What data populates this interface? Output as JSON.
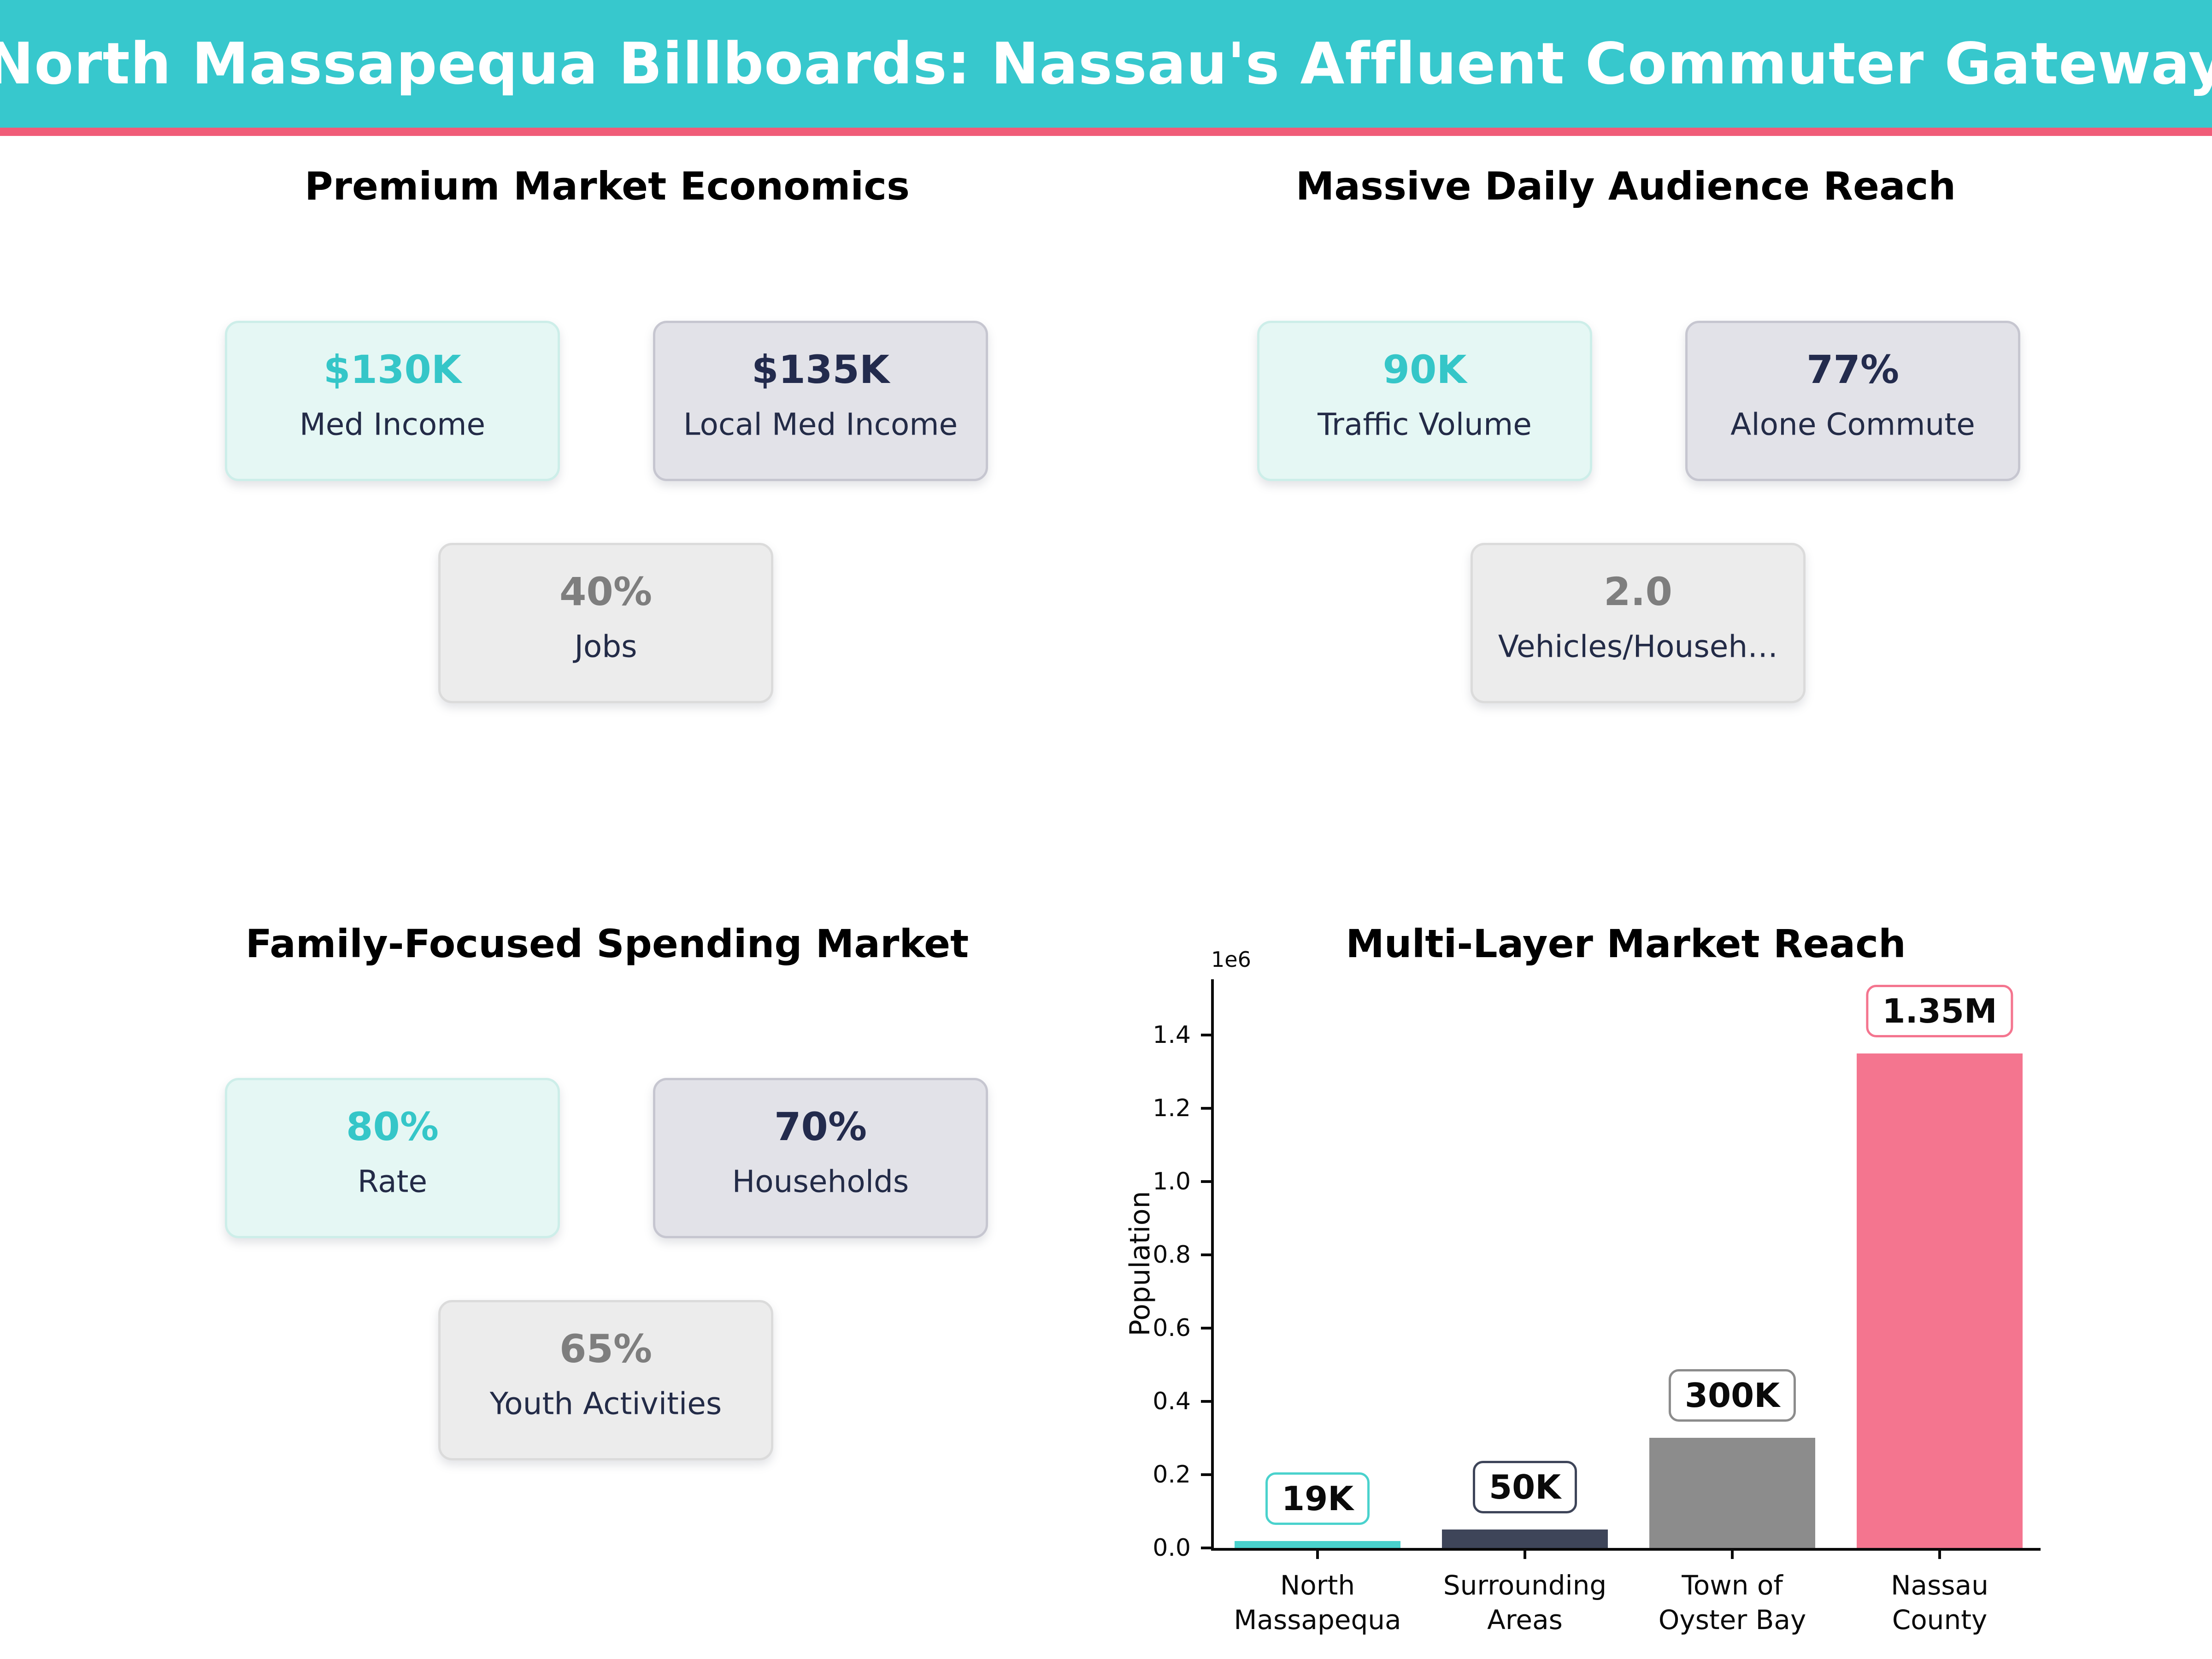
{
  "header": {
    "title": "North Massapequa Billboards: Nassau's Affluent Commuter Gateway"
  },
  "colors": {
    "header_bg": "#37C8CD",
    "divider": "#F05C78",
    "teal_accent": "#35C6C8",
    "navy_text": "#232B47",
    "gray_value": "#7E7E7E"
  },
  "sections": {
    "economics": {
      "title": "Premium Market Economics",
      "cards": [
        {
          "value": "$130K",
          "label": "Med Income"
        },
        {
          "value": "$135K",
          "label": "Local Med Income"
        },
        {
          "value": "40%",
          "label": "Jobs"
        }
      ]
    },
    "audience": {
      "title": "Massive Daily Audience Reach",
      "cards": [
        {
          "value": "90K",
          "label": "Traffic Volume"
        },
        {
          "value": "77%",
          "label": "Alone Commute"
        },
        {
          "value": "2.0",
          "label": "Vehicles/Househ…"
        }
      ]
    },
    "family": {
      "title": "Family-Focused Spending Market",
      "cards": [
        {
          "value": "80%",
          "label": "Rate"
        },
        {
          "value": "70%",
          "label": "Households"
        },
        {
          "value": "65%",
          "label": "Youth Activities"
        }
      ]
    }
  },
  "chart_data": {
    "type": "bar",
    "title": "Multi-Layer Market Reach",
    "categories": [
      "North\nMassapequa",
      "Surrounding\nAreas",
      "Town of\nOyster Bay",
      "Nassau\nCounty"
    ],
    "values": [
      19000,
      50000,
      300000,
      1350000
    ],
    "bar_labels": [
      "19K",
      "50K",
      "300K",
      "1.35M"
    ],
    "bar_colors": [
      "#4AD2CD",
      "#3E4559",
      "#8C8C8C",
      "#F4758F"
    ],
    "xlabel": "",
    "ylabel": "Population",
    "offset_text": "1e6",
    "ylim": [
      0,
      1560000
    ],
    "yticks": [
      0.0,
      0.2,
      0.4,
      0.6,
      0.8,
      1.0,
      1.2,
      1.4
    ],
    "ytick_labels": [
      "0.0",
      "0.2",
      "0.4",
      "0.6",
      "0.8",
      "1.0",
      "1.2",
      "1.4"
    ],
    "grid": false,
    "legend": false
  }
}
